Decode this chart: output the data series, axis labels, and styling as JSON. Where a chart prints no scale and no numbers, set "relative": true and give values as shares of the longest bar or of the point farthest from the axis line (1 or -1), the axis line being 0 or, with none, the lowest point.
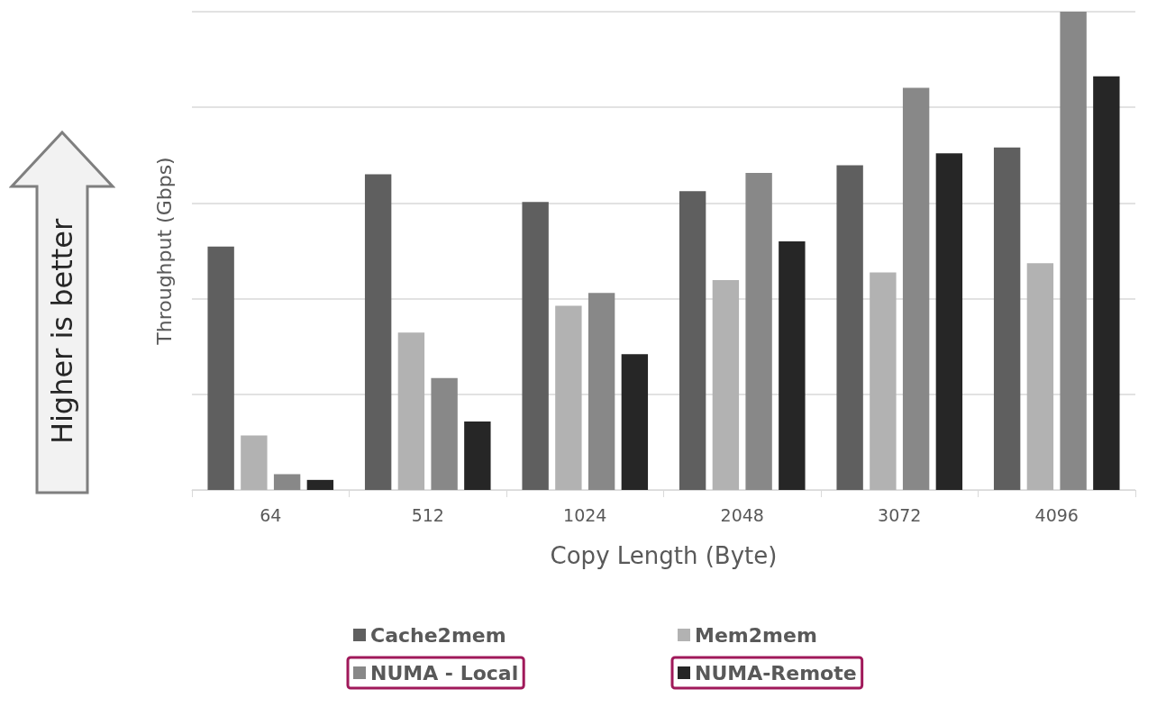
{
  "chart_data": {
    "type": "bar",
    "relative": true,
    "xlabel": "Copy Length (Byte)",
    "ylabel": "Throughput (Gbps)",
    "categories": [
      "64",
      "512",
      "1024",
      "2048",
      "3072",
      "4096"
    ],
    "series": [
      {
        "name": "Cache2mem",
        "color": "#5f5f5f",
        "values": [
          0.509,
          0.66,
          0.602,
          0.625,
          0.679,
          0.716
        ]
      },
      {
        "name": "Mem2mem",
        "color": "#b2b2b2",
        "values": [
          0.114,
          0.329,
          0.385,
          0.439,
          0.455,
          0.474
        ]
      },
      {
        "name": "NUMA - Local",
        "color": "#888888",
        "values": [
          0.033,
          0.234,
          0.412,
          0.663,
          0.841,
          1
        ]
      },
      {
        "name": "NUMA-Remote",
        "color": "#262626",
        "values": [
          0.021,
          0.143,
          0.284,
          0.52,
          0.704,
          0.865
        ]
      }
    ],
    "annotations": [
      "Higher is better"
    ],
    "grid": true,
    "legend": "bottom"
  }
}
